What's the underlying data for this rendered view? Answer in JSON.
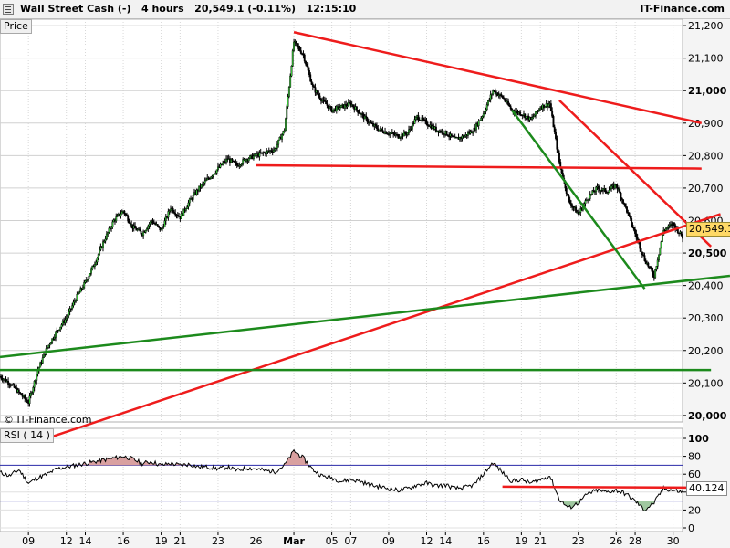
{
  "header": {
    "instrument": "Wall Street Cash (-)",
    "timeframe": "4 hours",
    "last_change": "20,549.1 (-0.11%)",
    "time": "12:15:10",
    "brand": "IT-Finance.com"
  },
  "price_panel": {
    "tag": "Price",
    "watermark": "© IT-Finance.com",
    "last_value_label": "20,549.1",
    "last_value_color": "#ffd966"
  },
  "rsi_panel": {
    "tag": "RSI ( 14 )",
    "last_value_label": "40.124"
  },
  "chart_data": [
    {
      "type": "candlestick",
      "title": "Wall Street Cash (-)",
      "ylabel": "Price",
      "ylim": [
        19980,
        21220
      ],
      "yticks": [
        {
          "value": 20000,
          "label": "20,000",
          "bold": true
        },
        {
          "value": 20100,
          "label": "20,100",
          "bold": false
        },
        {
          "value": 20200,
          "label": "20,200",
          "bold": false
        },
        {
          "value": 20300,
          "label": "20,300",
          "bold": false
        },
        {
          "value": 20400,
          "label": "20,400",
          "bold": false
        },
        {
          "value": 20500,
          "label": "20,500",
          "bold": true
        },
        {
          "value": 20600,
          "label": "20,600",
          "bold": false
        },
        {
          "value": 20700,
          "label": "20,700",
          "bold": false
        },
        {
          "value": 20800,
          "label": "20,800",
          "bold": false
        },
        {
          "value": 20900,
          "label": "20,900",
          "bold": false
        },
        {
          "value": 21000,
          "label": "21,000",
          "bold": true
        },
        {
          "value": 21100,
          "label": "21,100",
          "bold": false
        },
        {
          "value": 21200,
          "label": "21,200",
          "bold": false
        }
      ],
      "xticks": [
        {
          "x": 0,
          "label": "09",
          "bold": false
        },
        {
          "x": 4,
          "label": "12",
          "bold": false
        },
        {
          "x": 6,
          "label": "14",
          "bold": false
        },
        {
          "x": 10,
          "label": "16",
          "bold": false
        },
        {
          "x": 14,
          "label": "19",
          "bold": false
        },
        {
          "x": 16,
          "label": "21",
          "bold": false
        },
        {
          "x": 20,
          "label": "23",
          "bold": false
        },
        {
          "x": 24,
          "label": "26",
          "bold": false
        },
        {
          "x": 28,
          "label": "Mar",
          "bold": true
        },
        {
          "x": 32,
          "label": "05",
          "bold": false
        },
        {
          "x": 34,
          "label": "07",
          "bold": false
        },
        {
          "x": 38,
          "label": "09",
          "bold": false
        },
        {
          "x": 42,
          "label": "12",
          "bold": false
        },
        {
          "x": 44,
          "label": "14",
          "bold": false
        },
        {
          "x": 48,
          "label": "16",
          "bold": false
        },
        {
          "x": 52,
          "label": "19",
          "bold": false
        },
        {
          "x": 54,
          "label": "21",
          "bold": false
        },
        {
          "x": 58,
          "label": "23",
          "bold": false
        },
        {
          "x": 62,
          "label": "26",
          "bold": false
        },
        {
          "x": 64,
          "label": "28",
          "bold": false
        },
        {
          "x": 68,
          "label": "30",
          "bold": false
        }
      ],
      "xlim": [
        -3,
        69
      ],
      "price_path": [
        [
          -3,
          20120
        ],
        [
          -2,
          20100
        ],
        [
          -1,
          20070
        ],
        [
          0,
          20040
        ],
        [
          1,
          20140
        ],
        [
          2,
          20210
        ],
        [
          3,
          20260
        ],
        [
          4,
          20300
        ],
        [
          5,
          20360
        ],
        [
          6,
          20410
        ],
        [
          7,
          20470
        ],
        [
          8,
          20540
        ],
        [
          9,
          20600
        ],
        [
          10,
          20630
        ],
        [
          11,
          20580
        ],
        [
          12,
          20560
        ],
        [
          13,
          20600
        ],
        [
          14,
          20570
        ],
        [
          15,
          20640
        ],
        [
          16,
          20610
        ],
        [
          17,
          20660
        ],
        [
          18,
          20700
        ],
        [
          19,
          20730
        ],
        [
          20,
          20760
        ],
        [
          21,
          20790
        ],
        [
          22,
          20770
        ],
        [
          23,
          20790
        ],
        [
          24,
          20800
        ],
        [
          25,
          20810
        ],
        [
          26,
          20820
        ],
        [
          27,
          20880
        ],
        [
          28,
          21150
        ],
        [
          29,
          21110
        ],
        [
          30,
          21010
        ],
        [
          31,
          20970
        ],
        [
          32,
          20940
        ],
        [
          33,
          20950
        ],
        [
          34,
          20960
        ],
        [
          35,
          20930
        ],
        [
          36,
          20900
        ],
        [
          37,
          20880
        ],
        [
          38,
          20870
        ],
        [
          39,
          20860
        ],
        [
          40,
          20870
        ],
        [
          41,
          20920
        ],
        [
          42,
          20900
        ],
        [
          43,
          20880
        ],
        [
          44,
          20870
        ],
        [
          45,
          20850
        ],
        [
          46,
          20860
        ],
        [
          47,
          20880
        ],
        [
          48,
          20930
        ],
        [
          49,
          21000
        ],
        [
          50,
          20980
        ],
        [
          51,
          20940
        ],
        [
          52,
          20930
        ],
        [
          53,
          20910
        ],
        [
          54,
          20950
        ],
        [
          55,
          20960
        ],
        [
          56,
          20780
        ],
        [
          57,
          20660
        ],
        [
          58,
          20620
        ],
        [
          59,
          20670
        ],
        [
          60,
          20700
        ],
        [
          61,
          20690
        ],
        [
          62,
          20710
        ],
        [
          63,
          20640
        ],
        [
          64,
          20560
        ],
        [
          65,
          20480
        ],
        [
          66,
          20430
        ],
        [
          67,
          20570
        ],
        [
          68,
          20590
        ],
        [
          69,
          20549
        ]
      ],
      "trendlines": [
        {
          "color": "#ee1c1c",
          "from": [
            28,
            21180
          ],
          "to": [
            71,
            20900
          ]
        },
        {
          "color": "#ee1c1c",
          "from": [
            56,
            20970
          ],
          "to": [
            72,
            20520
          ]
        },
        {
          "color": "#ee1c1c",
          "from": [
            24,
            20770
          ],
          "to": [
            71,
            20760
          ]
        },
        {
          "color": "#ee1c1c",
          "from": [
            2,
            19930
          ],
          "to": [
            73,
            20620
          ]
        },
        {
          "color": "#1c8a1c",
          "from": [
            51,
            20940
          ],
          "to": [
            65,
            20390
          ]
        },
        {
          "color": "#1c8a1c",
          "from": [
            -3,
            20180
          ],
          "to": [
            74,
            20430
          ]
        },
        {
          "color": "#1c8a1c",
          "from": [
            -3,
            20140
          ],
          "to": [
            72,
            20140
          ]
        }
      ]
    },
    {
      "type": "line",
      "title": "RSI ( 14 )",
      "ylim": [
        0,
        100
      ],
      "yticks": [
        {
          "value": 0,
          "label": "0"
        },
        {
          "value": 20,
          "label": "20"
        },
        {
          "value": 40,
          "label": "40"
        },
        {
          "value": 60,
          "label": "60"
        },
        {
          "value": 80,
          "label": "80"
        },
        {
          "value": 100,
          "label": "100"
        }
      ],
      "overbought": 70,
      "oversold": 30,
      "series": [
        {
          "values": [
            [
              -3,
              62
            ],
            [
              -2,
              58
            ],
            [
              -1,
              65
            ],
            [
              0,
              50
            ],
            [
              1,
              56
            ],
            [
              2,
              60
            ],
            [
              3,
              66
            ],
            [
              4,
              68
            ],
            [
              5,
              70
            ],
            [
              6,
              72
            ],
            [
              7,
              74
            ],
            [
              8,
              76
            ],
            [
              9,
              78
            ],
            [
              10,
              80
            ],
            [
              11,
              77
            ],
            [
              12,
              72
            ],
            [
              13,
              74
            ],
            [
              14,
              70
            ],
            [
              15,
              72
            ],
            [
              16,
              70
            ],
            [
              17,
              71
            ],
            [
              18,
              68
            ],
            [
              19,
              68
            ],
            [
              20,
              66
            ],
            [
              21,
              68
            ],
            [
              22,
              64
            ],
            [
              23,
              67
            ],
            [
              24,
              66
            ],
            [
              25,
              64
            ],
            [
              26,
              63
            ],
            [
              27,
              70
            ],
            [
              28,
              86
            ],
            [
              29,
              78
            ],
            [
              30,
              65
            ],
            [
              31,
              58
            ],
            [
              32,
              56
            ],
            [
              33,
              52
            ],
            [
              34,
              54
            ],
            [
              35,
              52
            ],
            [
              36,
              48
            ],
            [
              37,
              46
            ],
            [
              38,
              44
            ],
            [
              39,
              42
            ],
            [
              40,
              44
            ],
            [
              41,
              48
            ],
            [
              42,
              50
            ],
            [
              43,
              47
            ],
            [
              44,
              48
            ],
            [
              45,
              44
            ],
            [
              46,
              45
            ],
            [
              47,
              48
            ],
            [
              48,
              60
            ],
            [
              49,
              73
            ],
            [
              50,
              62
            ],
            [
              51,
              52
            ],
            [
              52,
              54
            ],
            [
              53,
              50
            ],
            [
              54,
              54
            ],
            [
              55,
              58
            ],
            [
              56,
              32
            ],
            [
              57,
              22
            ],
            [
              58,
              28
            ],
            [
              59,
              38
            ],
            [
              60,
              42
            ],
            [
              61,
              40
            ],
            [
              62,
              42
            ],
            [
              63,
              38
            ],
            [
              64,
              30
            ],
            [
              65,
              20
            ],
            [
              66,
              28
            ],
            [
              67,
              44
            ],
            [
              68,
              42
            ],
            [
              69,
              40
            ]
          ]
        }
      ],
      "resistance": {
        "color": "#ee1c1c",
        "from": [
          50,
          46
        ],
        "to": [
          70,
          45
        ]
      }
    }
  ]
}
